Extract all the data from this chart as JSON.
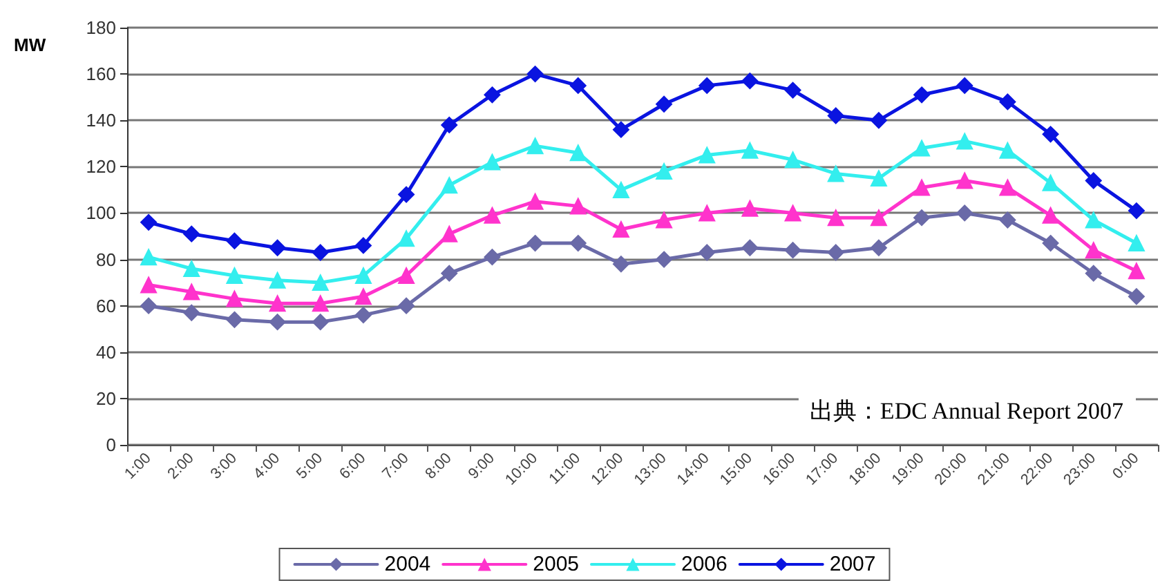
{
  "chart_data": {
    "type": "line",
    "ylabel": "MW",
    "categories": [
      "1:00",
      "2:00",
      "3:00",
      "4:00",
      "5:00",
      "6:00",
      "7:00",
      "8:00",
      "9:00",
      "10:00",
      "11:00",
      "12:00",
      "13:00",
      "14:00",
      "15:00",
      "16:00",
      "17:00",
      "18:00",
      "19:00",
      "20:00",
      "21:00",
      "22:00",
      "23:00",
      "0:00"
    ],
    "series": [
      {
        "name": "2004",
        "color": "#6a6aa8",
        "marker": "diamond",
        "values": [
          60,
          57,
          54,
          53,
          53,
          56,
          60,
          74,
          81,
          87,
          87,
          78,
          80,
          83,
          85,
          84,
          83,
          85,
          98,
          100,
          97,
          87,
          74,
          64
        ]
      },
      {
        "name": "2005",
        "color": "#ff33cc",
        "marker": "triangle",
        "values": [
          69,
          66,
          63,
          61,
          61,
          64,
          73,
          91,
          99,
          105,
          103,
          93,
          97,
          100,
          102,
          100,
          98,
          98,
          111,
          114,
          111,
          99,
          84,
          75
        ]
      },
      {
        "name": "2006",
        "color": "#33eeee",
        "marker": "triangle",
        "values": [
          81,
          76,
          73,
          71,
          70,
          73,
          89,
          112,
          122,
          129,
          126,
          110,
          118,
          125,
          127,
          123,
          117,
          115,
          128,
          131,
          127,
          113,
          97,
          87
        ]
      },
      {
        "name": "2007",
        "color": "#0a14e0",
        "marker": "diamond",
        "values": [
          96,
          91,
          88,
          85,
          83,
          86,
          108,
          138,
          151,
          160,
          155,
          136,
          147,
          155,
          157,
          153,
          142,
          140,
          151,
          155,
          148,
          134,
          114,
          101
        ]
      }
    ],
    "ylim": [
      0,
      180
    ],
    "yticks": [
      0,
      20,
      40,
      60,
      80,
      100,
      120,
      140,
      160,
      180
    ],
    "grid": "y",
    "legend": "bottom",
    "annotations": [
      "出典：EDC Annual Report 2007"
    ]
  }
}
